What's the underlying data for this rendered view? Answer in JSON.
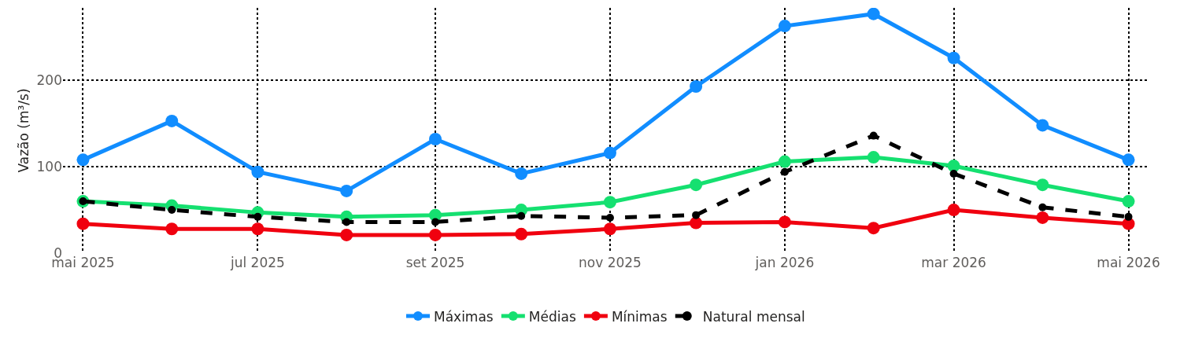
{
  "chart_data": {
    "type": "line",
    "ylabel": "Vazão (m³/s)",
    "x": [
      "2025-05-01",
      "2025-06-01",
      "2025-07-01",
      "2025-08-01",
      "2025-09-01",
      "2025-10-01",
      "2025-11-01",
      "2025-12-01",
      "2026-01-01",
      "2026-02-01",
      "2026-03-01",
      "2026-04-01",
      "2026-05-01"
    ],
    "series": [
      {
        "name": "Máximas",
        "color": "#118dff",
        "values": [
          108,
          153,
          94,
          72,
          132,
          92,
          116,
          193,
          263,
          277,
          226,
          148,
          108
        ]
      },
      {
        "name": "Médias",
        "color": "#15e070",
        "values": [
          60,
          55,
          47,
          42,
          44,
          50,
          59,
          79,
          106,
          111,
          101,
          79,
          60
        ]
      },
      {
        "name": "Mínimas",
        "color": "#f0000f",
        "values": [
          34,
          28,
          28,
          21,
          21,
          22,
          28,
          35,
          36,
          29,
          50,
          41,
          34
        ]
      },
      {
        "name": "Natural mensal",
        "color": "#000000",
        "line_style": "dashed",
        "values": [
          60,
          50,
          42,
          36,
          36,
          43,
          41,
          44,
          94,
          136,
          92,
          53,
          42
        ]
      }
    ],
    "xlim": [
      "2025-04-24",
      "2026-05-08"
    ],
    "xticks": [
      {
        "value": "2025-05-01",
        "label": "mai 2025"
      },
      {
        "value": "2025-07-01",
        "label": "jul 2025"
      },
      {
        "value": "2025-09-01",
        "label": "set 2025"
      },
      {
        "value": "2025-11-01",
        "label": "nov 2025"
      },
      {
        "value": "2026-01-01",
        "label": "jan 2026"
      },
      {
        "value": "2026-03-01",
        "label": "mar 2026"
      },
      {
        "value": "2026-05-01",
        "label": "mai 2026"
      }
    ],
    "ylim": [
      0,
      284
    ],
    "yticks": [
      0,
      100,
      200
    ],
    "grid": true,
    "legend": "bottom",
    "marker": "circle",
    "line_style": "solid"
  }
}
